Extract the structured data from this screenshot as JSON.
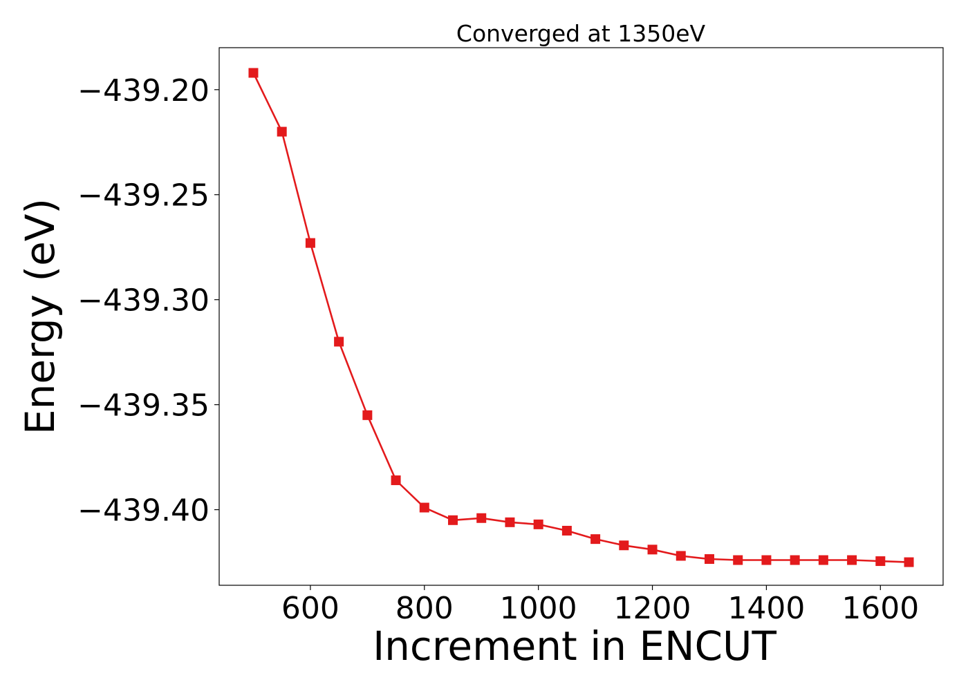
{
  "chart_data": {
    "type": "line",
    "title": "Converged at 1350eV",
    "xlabel": "Increment in ENCUT",
    "ylabel": "Energy (eV)",
    "xlim": [
      440,
      1710
    ],
    "ylim": [
      -439.436,
      -439.18
    ],
    "x_ticks": [
      600,
      800,
      1000,
      1200,
      1400,
      1600
    ],
    "x_tick_labels": [
      "600",
      "800",
      "1000",
      "1200",
      "1400",
      "1600"
    ],
    "y_ticks": [
      -439.2,
      -439.25,
      -439.3,
      -439.35,
      -439.4
    ],
    "y_tick_labels": [
      "−439.20",
      "−439.25",
      "−439.30",
      "−439.35",
      "−439.40"
    ],
    "grid": false,
    "series": [
      {
        "color": "#e31a1c",
        "marker": "square",
        "x": [
          500,
          550,
          600,
          650,
          700,
          750,
          800,
          850,
          900,
          950,
          1000,
          1050,
          1100,
          1150,
          1200,
          1250,
          1300,
          1350,
          1400,
          1450,
          1500,
          1550,
          1600,
          1650
        ],
        "y": [
          -439.192,
          -439.22,
          -439.273,
          -439.32,
          -439.355,
          -439.386,
          -439.399,
          -439.405,
          -439.404,
          -439.406,
          -439.407,
          -439.41,
          -439.414,
          -439.417,
          -439.419,
          -439.422,
          -439.4235,
          -439.424,
          -439.424,
          -439.424,
          -439.424,
          -439.424,
          -439.4245,
          -439.425
        ]
      }
    ]
  }
}
